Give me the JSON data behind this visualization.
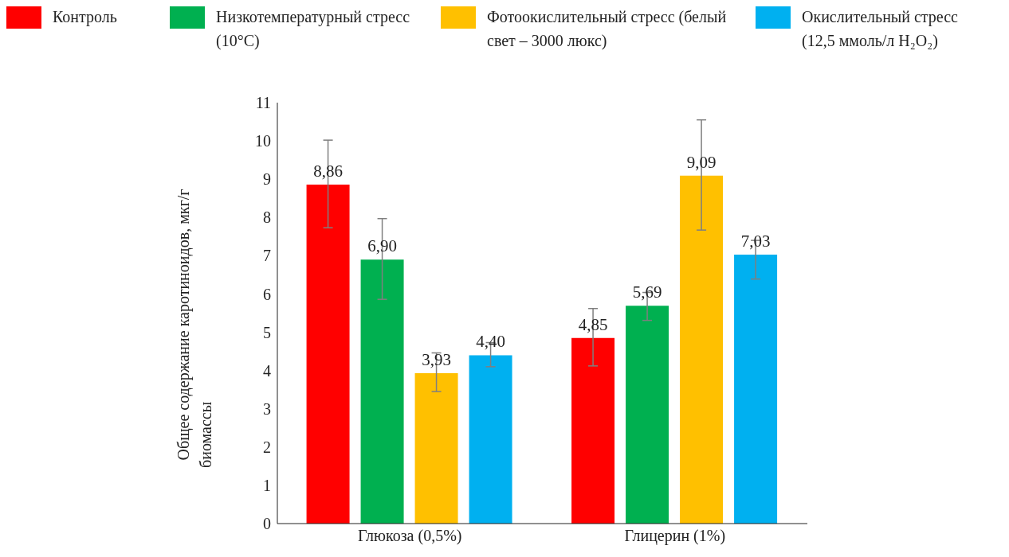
{
  "chart_data": {
    "type": "bar",
    "ylabel": "Общее содержание каротиноидов, мкг/г биомассы",
    "categories": [
      "Глюкоза (0,5%)",
      "Глицерин (1%)"
    ],
    "series": [
      {
        "name": "Контроль",
        "color": "#ff0000",
        "values": [
          8.86,
          4.85
        ],
        "value_labels": [
          "8,86",
          "4,85"
        ],
        "errors": [
          [
            7.73,
            10.02
          ],
          [
            4.12,
            5.62
          ]
        ]
      },
      {
        "name": "Низкотемпературный стресс (10°C)",
        "color": "#00b050",
        "values": [
          6.9,
          5.69
        ],
        "value_labels": [
          "6,90",
          "5,69"
        ],
        "errors": [
          [
            5.86,
            7.97
          ],
          [
            5.31,
            6.04
          ]
        ]
      },
      {
        "name": "Фотоокислительный стресс (белый свет – 3000 люкс)",
        "color": "#ffc000",
        "values": [
          3.93,
          9.09
        ],
        "value_labels": [
          "3,93",
          "9,09"
        ],
        "errors": [
          [
            3.45,
            4.46
          ],
          [
            7.67,
            10.55
          ]
        ]
      },
      {
        "name": "Окислительный стресс (12,5 ммоль/л H₂O₂)",
        "color": "#00b0f0",
        "values": [
          4.4,
          7.03
        ],
        "value_labels": [
          "4,40",
          "7,03"
        ],
        "errors": [
          [
            4.1,
            4.73
          ],
          [
            6.39,
            7.4
          ]
        ]
      }
    ],
    "ylim": [
      0,
      11
    ],
    "yticks": [
      0,
      1,
      2,
      3,
      4,
      5,
      6,
      7,
      8,
      9,
      10,
      11
    ],
    "grid": false,
    "legend": "top"
  }
}
